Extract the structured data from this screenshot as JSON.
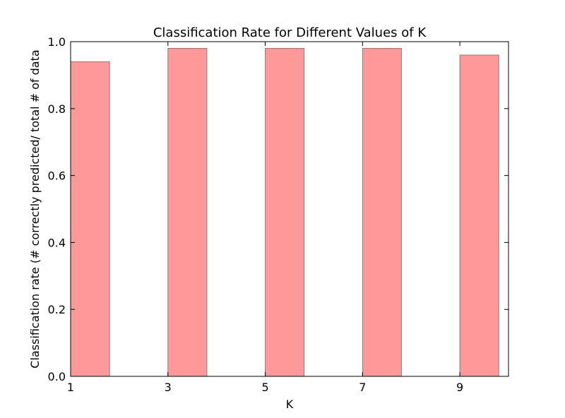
{
  "chart_data": {
    "type": "bar",
    "title": "Classification Rate for Different Values of K",
    "xlabel": "K",
    "ylabel": "Classification rate (# correctly predicted/ total # of data",
    "x": [
      1,
      3,
      5,
      7,
      9
    ],
    "values": [
      0.94,
      0.98,
      0.98,
      0.98,
      0.96
    ],
    "bar_width": 0.8,
    "xlim": [
      1,
      10
    ],
    "ylim": [
      0.0,
      1.0
    ],
    "x_ticks": [
      "1",
      "3",
      "5",
      "7",
      "9"
    ],
    "y_ticks": [
      "0.0",
      "0.2",
      "0.4",
      "0.6",
      "0.8",
      "1.0"
    ],
    "grid": false,
    "colors": {
      "bar_fill": "#ff9999",
      "bar_edge": "#808080",
      "axes": "#000000"
    }
  }
}
